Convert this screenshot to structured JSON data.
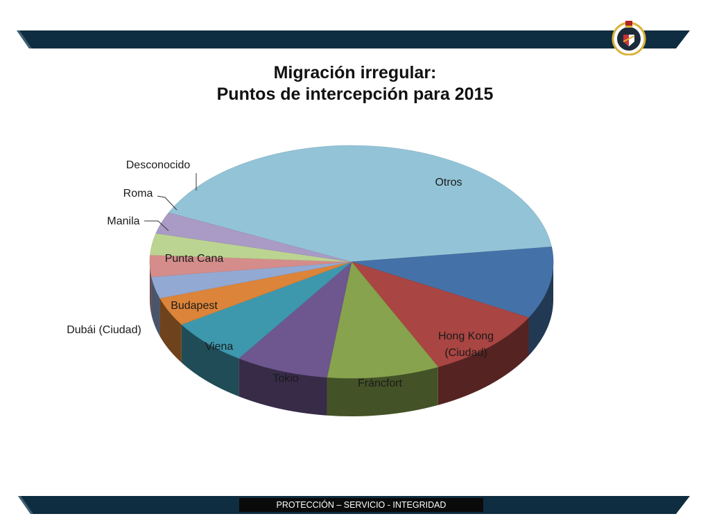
{
  "header": {
    "title_line1": "Migración irregular:",
    "title_line2": "Puntos de intercepción para 2015"
  },
  "footer": {
    "motto": "PROTECCIÓN – SERVICIO - INTEGRIDAD"
  },
  "colors": {
    "band": "#0f2d40",
    "band_accent": "#3d5e73"
  },
  "logo": {
    "icon": "crest-emblem-icon"
  },
  "chart_data": {
    "type": "pie",
    "style": "3d",
    "title": "Migración irregular: Puntos de intercepción para 2015",
    "slices": [
      {
        "label": "Otros",
        "value": 41.0,
        "color": "#93c3d6"
      },
      {
        "label": "Hong Kong (Ciudad)",
        "value": 10.0,
        "color": "#4472a8"
      },
      {
        "label": "Fráncfort",
        "value": 10.0,
        "color": "#a94542"
      },
      {
        "label": "Tokio",
        "value": 9.0,
        "color": "#87a34d"
      },
      {
        "label": "Viena",
        "value": 7.5,
        "color": "#6e568f"
      },
      {
        "label": "Budapest",
        "value": 6.5,
        "color": "#3d98ae"
      },
      {
        "label": "Dubái (Ciudad)",
        "value": 4.0,
        "color": "#dc8439"
      },
      {
        "label": "Punta Cana",
        "value": 3.0,
        "color": "#92a9d4"
      },
      {
        "label": "Manila",
        "value": 3.0,
        "color": "#d48d8b"
      },
      {
        "label": "Roma",
        "value": 3.0,
        "color": "#bcd491"
      },
      {
        "label": "Desconocido",
        "value": 3.0,
        "color": "#a99bc6"
      }
    ]
  }
}
